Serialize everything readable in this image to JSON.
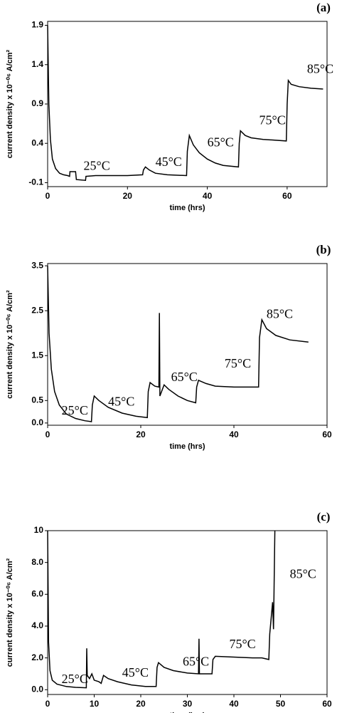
{
  "chart_data": [
    {
      "type": "line",
      "panel_label": "(a)",
      "y_label": "current density x 10⁻⁰⁶ A/cm²",
      "x_label": "time (hrs)",
      "color": "#000000",
      "annotations": [
        "25°C",
        "45°C",
        "65°C",
        "75°C",
        "85°C"
      ],
      "xlim": [
        0,
        70
      ],
      "xticks": [
        0,
        20,
        40,
        60
      ],
      "ylim": [
        -0.15,
        1.95
      ],
      "yticks": [
        -0.1,
        0.4,
        0.9,
        1.4,
        1.9
      ],
      "x": [
        0,
        0.3,
        0.7,
        1.2,
        2,
        3,
        4,
        5,
        5.5,
        5.6,
        7,
        7.2,
        9.5,
        9.6,
        12,
        16,
        20,
        23.8,
        24,
        24.5,
        25.5,
        27,
        30,
        34.8,
        35,
        35.5,
        36.5,
        38,
        40,
        42,
        44,
        47.8,
        48,
        48.3,
        49.5,
        51,
        54,
        59.8,
        60,
        60.3,
        61,
        63,
        66,
        69
      ],
      "values": [
        1.9,
        0.9,
        0.45,
        0.2,
        0.08,
        0.02,
        0.0,
        -0.01,
        -0.02,
        0.04,
        0.04,
        -0.06,
        -0.07,
        -0.02,
        -0.01,
        -0.01,
        -0.01,
        0.0,
        0.06,
        0.1,
        0.06,
        0.02,
        0.0,
        -0.01,
        0.3,
        0.5,
        0.38,
        0.28,
        0.2,
        0.15,
        0.12,
        0.1,
        0.4,
        0.56,
        0.5,
        0.47,
        0.45,
        0.43,
        0.9,
        1.2,
        1.15,
        1.12,
        1.1,
        1.09
      ]
    },
    {
      "type": "line",
      "panel_label": "(b)",
      "y_label": "current density x 10⁻⁰⁶ A/cm²",
      "x_label": "time (hrs)",
      "color": "#000000",
      "annotations": [
        "25°C",
        "45°C",
        "65°C",
        "75°C",
        "85°C"
      ],
      "xlim": [
        0,
        60
      ],
      "xticks": [
        0,
        20,
        40,
        60
      ],
      "ylim": [
        -0.05,
        3.55
      ],
      "yticks": [
        {
          "value": 0,
          "label": "0.0"
        },
        0.5,
        1.5,
        2.5,
        3.5
      ],
      "x": [
        0,
        0.3,
        0.8,
        1.5,
        2.5,
        4,
        6,
        8,
        9.4,
        9.6,
        10,
        11,
        13,
        16,
        19,
        21.4,
        21.6,
        22,
        23,
        23.9,
        24,
        24.1,
        25,
        26,
        28,
        30,
        31.8,
        32,
        32.4,
        34,
        36,
        40,
        45.3,
        45.5,
        46,
        47,
        49,
        52,
        56
      ],
      "values": [
        3.5,
        2.0,
        1.2,
        0.7,
        0.4,
        0.2,
        0.1,
        0.05,
        0.03,
        0.4,
        0.6,
        0.5,
        0.35,
        0.22,
        0.15,
        0.12,
        0.7,
        0.9,
        0.82,
        0.8,
        2.45,
        0.6,
        0.85,
        0.75,
        0.6,
        0.5,
        0.45,
        0.8,
        0.95,
        0.88,
        0.82,
        0.8,
        0.8,
        1.9,
        2.3,
        2.1,
        1.95,
        1.85,
        1.8
      ]
    },
    {
      "type": "line",
      "panel_label": "(c)",
      "y_label": "current density x 10⁻⁰⁶ A/cm²",
      "x_label": "time (hrs)",
      "color": "#000000",
      "annotations": [
        "25°C",
        "45°C",
        "65°C",
        "75°C",
        "85°C"
      ],
      "xlim": [
        0,
        60
      ],
      "xticks": [
        0,
        10,
        20,
        30,
        40,
        50,
        60
      ],
      "ylim": [
        -0.3,
        10
      ],
      "yticks": [
        {
          "value": 0,
          "label": "0.0"
        },
        {
          "value": 2,
          "label": "2.0"
        },
        {
          "value": 4,
          "label": "4.0"
        },
        {
          "value": 6,
          "label": "6.0"
        },
        {
          "value": 8,
          "label": "8.0"
        },
        10
      ],
      "x": [
        0,
        0.2,
        0.5,
        1,
        2,
        4,
        6,
        8.3,
        8.4,
        8.5,
        9,
        9.5,
        10,
        11,
        11.5,
        12,
        13,
        15,
        18,
        21,
        23.3,
        23.5,
        23.8,
        25,
        27,
        30,
        32.4,
        32.5,
        32.6,
        35.3,
        35.5,
        36,
        40,
        44,
        46,
        47.5,
        47.7,
        48,
        48.3,
        48.5,
        48.8
      ],
      "values": [
        10,
        3,
        1.2,
        0.6,
        0.35,
        0.2,
        0.15,
        0.12,
        2.6,
        0.9,
        0.7,
        1.0,
        0.6,
        0.5,
        0.4,
        0.9,
        0.7,
        0.5,
        0.3,
        0.2,
        0.2,
        1.4,
        1.7,
        1.4,
        1.2,
        1.05,
        1.0,
        3.2,
        1.0,
        1.0,
        1.9,
        2.1,
        2.05,
        2.0,
        2.0,
        1.9,
        3.5,
        4.5,
        5.5,
        3.8,
        10
      ]
    }
  ]
}
